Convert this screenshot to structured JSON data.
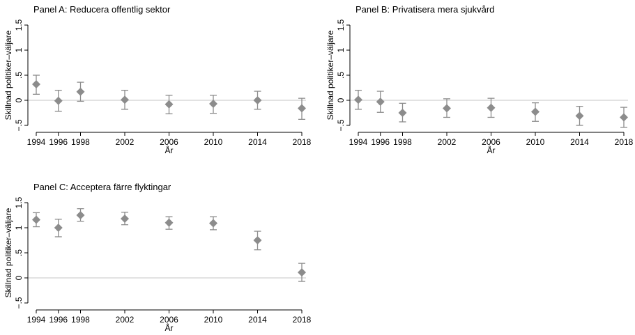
{
  "chart_data": [
    {
      "type": "scatter",
      "title": "Panel A: Reducera offentlig sektor",
      "xlabel": "År",
      "ylabel": "Skillnad politiker–väljare",
      "x": [
        1994,
        1996,
        1998,
        2002,
        2006,
        2010,
        2014,
        2018
      ],
      "x_ticklabels": [
        "1994",
        "1996",
        "1998",
        "2002",
        "2006",
        "2010",
        "2014",
        "2018"
      ],
      "ylim": [
        -0.5,
        1.5
      ],
      "y_ticks": [
        -0.5,
        0,
        0.5,
        1,
        1.5
      ],
      "y_ticklabels": [
        "−.5",
        "0",
        ".5",
        "1",
        "1.5"
      ],
      "reference_line": 0,
      "series": [
        {
          "values": [
            0.32,
            -0.01,
            0.17,
            0.01,
            -0.08,
            -0.07,
            0.0,
            -0.16
          ],
          "ci_low": [
            0.12,
            -0.22,
            -0.02,
            -0.18,
            -0.27,
            -0.26,
            -0.18,
            -0.38
          ],
          "ci_high": [
            0.5,
            0.2,
            0.36,
            0.2,
            0.1,
            0.1,
            0.18,
            0.04
          ]
        }
      ],
      "marker_color": "#8c8c8c",
      "line_color": "#d0d0d0"
    },
    {
      "type": "scatter",
      "title": "Panel B: Privatisera mera sjukvård",
      "xlabel": "År",
      "ylabel": "Skillnad politiker–väljare",
      "x": [
        1994,
        1996,
        1998,
        2002,
        2006,
        2010,
        2014,
        2018
      ],
      "x_ticklabels": [
        "1994",
        "1996",
        "1998",
        "2002",
        "2006",
        "2010",
        "2014",
        "2018"
      ],
      "ylim": [
        -0.5,
        1.5
      ],
      "y_ticks": [
        -0.5,
        0,
        0.5,
        1,
        1.5
      ],
      "y_ticklabels": [
        "−.5",
        "0",
        ".5",
        "1",
        "1.5"
      ],
      "reference_line": 0,
      "series": [
        {
          "values": [
            0.01,
            -0.03,
            -0.25,
            -0.16,
            -0.15,
            -0.23,
            -0.31,
            -0.34
          ],
          "ci_low": [
            -0.18,
            -0.24,
            -0.43,
            -0.34,
            -0.34,
            -0.42,
            -0.5,
            -0.54
          ],
          "ci_high": [
            0.2,
            0.18,
            -0.06,
            0.03,
            0.04,
            -0.05,
            -0.12,
            -0.14
          ]
        }
      ],
      "marker_color": "#8c8c8c",
      "line_color": "#d0d0d0"
    },
    {
      "type": "scatter",
      "title": "Panel C: Acceptera färre flyktingar",
      "xlabel": "År",
      "ylabel": "Skillnad politiker–väljare",
      "x": [
        1994,
        1996,
        1998,
        2002,
        2006,
        2010,
        2014,
        2018
      ],
      "x_ticklabels": [
        "1994",
        "1996",
        "1998",
        "2002",
        "2006",
        "2010",
        "2014",
        "2018"
      ],
      "ylim": [
        -0.5,
        1.5
      ],
      "y_ticks": [
        -0.5,
        0,
        0.5,
        1,
        1.5
      ],
      "y_ticklabels": [
        "−.5",
        "0",
        ".5",
        "1",
        "1.5"
      ],
      "reference_line": 0,
      "series": [
        {
          "values": [
            1.16,
            1.0,
            1.25,
            1.18,
            1.1,
            1.09,
            0.75,
            0.11
          ],
          "ci_low": [
            1.02,
            0.82,
            1.13,
            1.06,
            0.97,
            0.96,
            0.56,
            -0.07
          ],
          "ci_high": [
            1.3,
            1.17,
            1.38,
            1.31,
            1.22,
            1.22,
            0.93,
            0.29
          ]
        }
      ],
      "marker_color": "#8c8c8c",
      "line_color": "#d0d0d0"
    }
  ]
}
